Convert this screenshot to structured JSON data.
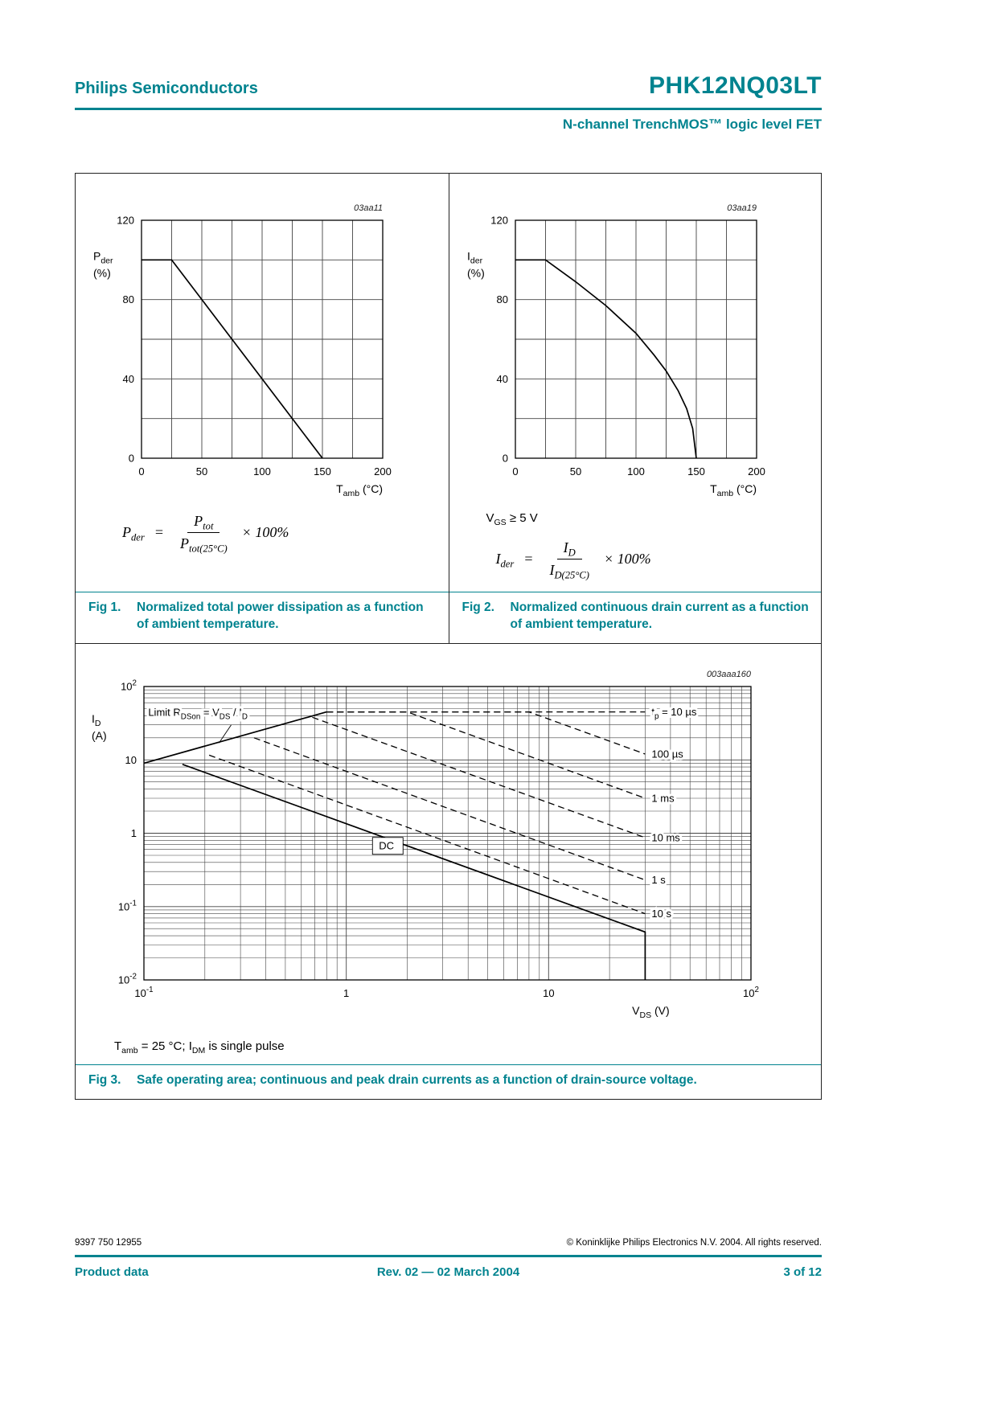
{
  "colors": {
    "accent": "#00838f",
    "line": "#000000",
    "grid": "#444444"
  },
  "header": {
    "brand": "Philips Semiconductors",
    "part_number": "PHK12NQ03LT",
    "subtitle": "N-channel TrenchMOS™ logic level FET"
  },
  "figures": {
    "fig1": {
      "caption_label": "Fig 1.",
      "caption_text": "Normalized total power dissipation as a function of ambient temperature.",
      "formula": {
        "lhs": [
          [
            "P"
          ],
          [
            "der",
            "sub"
          ]
        ],
        "num": [
          [
            "P"
          ],
          [
            "tot",
            "sub"
          ]
        ],
        "den": [
          [
            "P"
          ],
          [
            "tot(25°C)",
            "sub"
          ]
        ],
        "suffix": "× 100%"
      }
    },
    "fig2": {
      "caption_label": "Fig 2.",
      "caption_text": "Normalized continuous drain current as a function of ambient temperature.",
      "condition": [
        [
          "V"
        ],
        [
          "GS",
          "sub"
        ],
        [
          " ≥ 5 V"
        ]
      ],
      "formula": {
        "lhs": [
          [
            "I"
          ],
          [
            "der",
            "sub"
          ]
        ],
        "num": [
          [
            "I"
          ],
          [
            "D",
            "sub"
          ]
        ],
        "den": [
          [
            "I"
          ],
          [
            "D(25°C)",
            "sub"
          ]
        ],
        "suffix": "× 100%"
      }
    },
    "fig3": {
      "caption_label": "Fig 3.",
      "caption_text": "Safe operating area; continuous and peak drain currents as a function of drain-source voltage.",
      "condition": [
        [
          "T"
        ],
        [
          "amb",
          "sub"
        ],
        [
          " = 25 °C; I"
        ],
        [
          "DM",
          "sub"
        ],
        [
          " is single pulse"
        ]
      ]
    }
  },
  "chart_data": [
    {
      "id": "fig1",
      "type": "line",
      "title": "Normalized total power dissipation as a function of ambient temperature",
      "code": "03aa11",
      "xlabel": "Tamb (°C)",
      "ylabel": "Pder (%)",
      "xlabel_segs": [
        [
          "T"
        ],
        [
          "amb",
          "sub"
        ],
        [
          " (°C)"
        ]
      ],
      "ylabel_segs": [
        [
          "P"
        ],
        [
          "der",
          "sub"
        ]
      ],
      "ylabel_unit": "(%)",
      "xlim": [
        0,
        200
      ],
      "ylim": [
        0,
        120
      ],
      "xgrid_step": 25,
      "ygrid_step": 20,
      "xticks": [
        0,
        50,
        100,
        150,
        200
      ],
      "yticks": [
        0,
        40,
        80,
        120
      ],
      "series": [
        {
          "name": "Pder",
          "style": "solid",
          "points": [
            [
              0,
              100
            ],
            [
              25,
              100
            ],
            [
              150,
              0
            ]
          ]
        }
      ]
    },
    {
      "id": "fig2",
      "type": "line",
      "title": "Normalized continuous drain current as a function of ambient temperature",
      "code": "03aa19",
      "xlabel": "Tamb (°C)",
      "ylabel": "Ider (%)",
      "xlabel_segs": [
        [
          "T"
        ],
        [
          "amb",
          "sub"
        ],
        [
          " (°C)"
        ]
      ],
      "ylabel_segs": [
        [
          "I"
        ],
        [
          "der",
          "sub"
        ]
      ],
      "ylabel_unit": "(%)",
      "xlim": [
        0,
        200
      ],
      "ylim": [
        0,
        120
      ],
      "xgrid_step": 25,
      "ygrid_step": 20,
      "xticks": [
        0,
        50,
        100,
        150,
        200
      ],
      "yticks": [
        0,
        40,
        80,
        120
      ],
      "series": [
        {
          "name": "Ider",
          "style": "solid",
          "points": [
            [
              0,
              100
            ],
            [
              25,
              100
            ],
            [
              50,
              89
            ],
            [
              75,
              77
            ],
            [
              100,
              63
            ],
            [
              115,
              52
            ],
            [
              125,
              44
            ],
            [
              135,
              34
            ],
            [
              142,
              25
            ],
            [
              147,
              15
            ],
            [
              150,
              0
            ]
          ]
        }
      ]
    },
    {
      "id": "fig3",
      "type": "line",
      "title": "Safe operating area; continuous and peak drain currents as a function of drain-source voltage",
      "code": "003aaa160",
      "xlabel": "VDS (V)",
      "ylabel": "ID (A)",
      "xlabel_segs": [
        [
          "V"
        ],
        [
          "DS",
          "sub"
        ],
        [
          " (V)"
        ]
      ],
      "ylabel_segs": [
        [
          "I"
        ],
        [
          "D",
          "sub"
        ]
      ],
      "ylabel_unit": "(A)",
      "xlog": true,
      "ylog": true,
      "xlim": [
        0.1,
        100
      ],
      "ylim": [
        0.01,
        100
      ],
      "xticks": [
        0.1,
        1,
        10,
        100
      ],
      "yticks": [
        100,
        10,
        1,
        0.1,
        0.01
      ],
      "series": [
        {
          "name": "limit-rdson",
          "style": "solid",
          "points": [
            [
              0.1,
              9
            ],
            [
              0.8,
              45
            ]
          ]
        },
        {
          "name": "tp-10us",
          "style": "dashed",
          "label_segs": [
            [
              "t"
            ],
            [
              "p",
              "sub"
            ],
            [
              " = 10 µs"
            ]
          ],
          "points": [
            [
              0.8,
              45
            ],
            [
              30,
              45
            ]
          ]
        },
        {
          "name": "tp-100us",
          "style": "dashed",
          "label_segs": [
            [
              "100 µs"
            ]
          ],
          "points": [
            [
              0.8,
              45
            ],
            [
              8,
              45
            ],
            [
              30,
              12
            ]
          ]
        },
        {
          "name": "tp-1ms",
          "style": "dashed",
          "label_segs": [
            [
              "1 ms"
            ]
          ],
          "points": [
            [
              0.8,
              45
            ],
            [
              2,
              45
            ],
            [
              30,
              3
            ]
          ]
        },
        {
          "name": "tp-10ms",
          "style": "dashed",
          "label_segs": [
            [
              "10 ms"
            ]
          ],
          "points": [
            [
              0.68,
              38
            ],
            [
              30,
              0.87
            ]
          ]
        },
        {
          "name": "tp-1s",
          "style": "dashed",
          "label_segs": [
            [
              "1 s"
            ]
          ],
          "points": [
            [
              0.35,
              20
            ],
            [
              30,
              0.23
            ]
          ]
        },
        {
          "name": "tp-10s",
          "style": "dashed",
          "label_segs": [
            [
              "10 s"
            ]
          ],
          "points": [
            [
              0.21,
              11.6
            ],
            [
              30,
              0.08
            ]
          ]
        },
        {
          "name": "dc",
          "style": "solid",
          "points": [
            [
              0.155,
              8.7
            ],
            [
              30,
              0.045
            ],
            [
              30,
              0.01
            ]
          ]
        }
      ],
      "annotations": [
        {
          "segs": [
            [
              "Limit R"
            ],
            [
              "DSon",
              "sub"
            ],
            [
              " = V"
            ],
            [
              "DS",
              "sub"
            ],
            [
              " / I"
            ],
            [
              "D",
              "sub"
            ]
          ],
          "x": 0.105,
          "y": 40,
          "leader": [
            [
              0.27,
              30
            ],
            [
              0.235,
              17
            ]
          ]
        },
        {
          "segs": [
            [
              "DC"
            ]
          ],
          "x": 1.45,
          "y": 0.6,
          "box": true,
          "bw": 38
        }
      ]
    }
  ],
  "footer": {
    "doc_number": "9397 750 12955",
    "copyright": "© Koninklijke Philips Electronics N.V. 2004. All rights reserved.",
    "doc_type": "Product data",
    "revision": "Rev. 02 — 02 March 2004",
    "page": "3 of 12"
  }
}
